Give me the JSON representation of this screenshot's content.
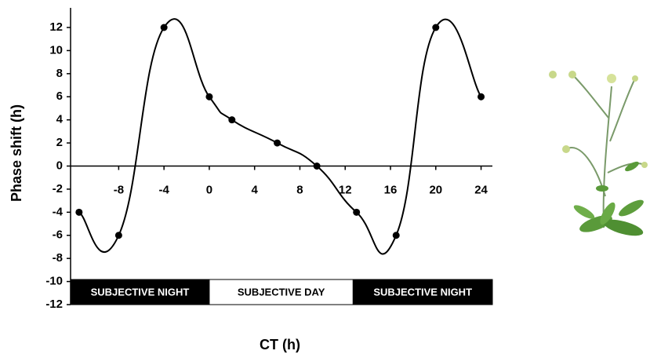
{
  "chart_data": {
    "type": "line",
    "x_label": "CT (h)",
    "y_label": "Phase shift (h)",
    "x": [
      -11.5,
      -8,
      -4,
      0,
      2,
      6,
      9.5,
      13,
      16.5,
      20,
      24
    ],
    "series": [
      {
        "color": "#000000",
        "values": [
          -4,
          -6,
          12,
          6,
          4,
          2,
          0,
          -4,
          -6,
          12,
          6
        ]
      }
    ],
    "smooth": true,
    "xlim": [
      -12.25,
      25
    ],
    "xticks": [
      -8,
      -4,
      0,
      4,
      8,
      12,
      16,
      20,
      24
    ],
    "ylim": [
      -12,
      13.7
    ],
    "yticks": [
      -12,
      -10,
      -8,
      -6,
      -4,
      -2,
      0,
      2,
      4,
      6,
      8,
      10,
      12
    ],
    "bands": [
      {
        "label": "SUBJECTIVE NIGHT",
        "from": -12.25,
        "to": 0,
        "color": "#000000"
      },
      {
        "label": "SUBJECTIVE DAY",
        "from": 0,
        "to": 12.7,
        "color": "#ffffff"
      },
      {
        "label": "SUBJECTIVE NIGHT",
        "from": 12.7,
        "to": 25,
        "color": "#000000"
      }
    ]
  }
}
